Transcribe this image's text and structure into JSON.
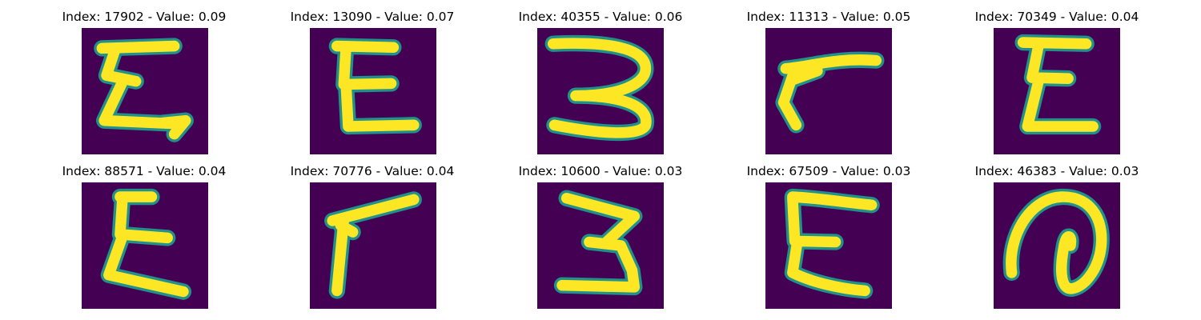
{
  "figure": {
    "background_color": "#440154",
    "stroke_color": "#fde725",
    "edge_color": "#21918c",
    "panels": [
      {
        "title": "Index: 17902 - Value: 0.09",
        "index": 17902,
        "value": 0.09,
        "glyph": "E"
      },
      {
        "title": "Index: 13090 - Value: 0.07",
        "index": 13090,
        "value": 0.07,
        "glyph": "E"
      },
      {
        "title": "Index: 40355 - Value: 0.06",
        "index": 40355,
        "value": 0.06,
        "glyph": "3"
      },
      {
        "title": "Index: 11313 - Value: 0.05",
        "index": 11313,
        "value": 0.05,
        "glyph": "r"
      },
      {
        "title": "Index: 70349 - Value: 0.04",
        "index": 70349,
        "value": 0.04,
        "glyph": "E"
      },
      {
        "title": "Index: 88571 - Value: 0.04",
        "index": 88571,
        "value": 0.04,
        "glyph": "E"
      },
      {
        "title": "Index: 70776 - Value: 0.04",
        "index": 70776,
        "value": 0.04,
        "glyph": "r"
      },
      {
        "title": "Index: 10600 - Value: 0.03",
        "index": 10600,
        "value": 0.03,
        "glyph": "3"
      },
      {
        "title": "Index: 67509 - Value: 0.03",
        "index": 67509,
        "value": 0.03,
        "glyph": "E"
      },
      {
        "title": "Index: 46383 - Value: 0.03",
        "index": 46383,
        "value": 0.03,
        "glyph": "@"
      }
    ]
  }
}
